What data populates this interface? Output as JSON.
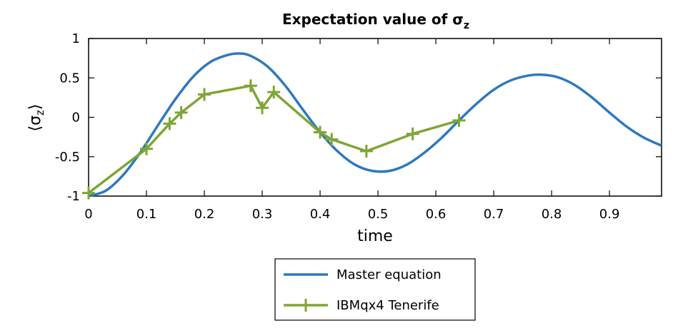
{
  "chart_data": {
    "type": "line",
    "title": "Expectation value of σ",
    "title_subscript": "z",
    "xlabel": "time",
    "ylabel": "⟨σ",
    "ylabel_subscript": "z",
    "ylabel_close": "⟩",
    "xlim": [
      0,
      0.99
    ],
    "ylim": [
      -1,
      1
    ],
    "xticks": [
      0,
      0.1,
      0.2,
      0.3,
      0.4,
      0.5,
      0.6,
      0.7,
      0.8,
      0.9
    ],
    "xtick_labels": [
      "0",
      "0.1",
      "0.2",
      "0.3",
      "0.4",
      "0.5",
      "0.6",
      "0.7",
      "0.8",
      "0.9"
    ],
    "yticks": [
      -1,
      -0.5,
      0,
      0.5,
      1
    ],
    "ytick_labels": [
      "-1",
      "-0.5",
      "0",
      "0.5",
      "1"
    ],
    "grid": false,
    "legend_position": "below",
    "series": [
      {
        "name": "Master equation",
        "color": "#2e78bd",
        "marker": "none",
        "x": [
          0,
          0.03,
          0.06,
          0.09,
          0.12,
          0.15,
          0.18,
          0.21,
          0.24,
          0.26,
          0.28,
          0.31,
          0.34,
          0.37,
          0.4,
          0.43,
          0.46,
          0.49,
          0.52,
          0.55,
          0.58,
          0.61,
          0.64,
          0.67,
          0.7,
          0.73,
          0.76,
          0.785,
          0.81,
          0.84,
          0.87,
          0.9,
          0.93,
          0.96,
          0.99
        ],
        "y": [
          -1.0,
          -0.93,
          -0.73,
          -0.44,
          -0.1,
          0.23,
          0.51,
          0.7,
          0.79,
          0.81,
          0.78,
          0.64,
          0.4,
          0.1,
          -0.19,
          -0.43,
          -0.6,
          -0.68,
          -0.68,
          -0.6,
          -0.45,
          -0.26,
          -0.04,
          0.17,
          0.35,
          0.47,
          0.53,
          0.54,
          0.51,
          0.41,
          0.25,
          0.06,
          -0.12,
          -0.26,
          -0.36
        ]
      },
      {
        "name": "IBMqx4 Tenerife",
        "color": "#7fa535",
        "marker": "+",
        "x": [
          0,
          0.1,
          0.14,
          0.16,
          0.2,
          0.28,
          0.3,
          0.32,
          0.4,
          0.42,
          0.48,
          0.56,
          0.64
        ],
        "y": [
          -0.96,
          -0.4,
          -0.08,
          0.06,
          0.29,
          0.4,
          0.12,
          0.32,
          -0.19,
          -0.28,
          -0.43,
          -0.21,
          -0.04
        ]
      }
    ]
  }
}
